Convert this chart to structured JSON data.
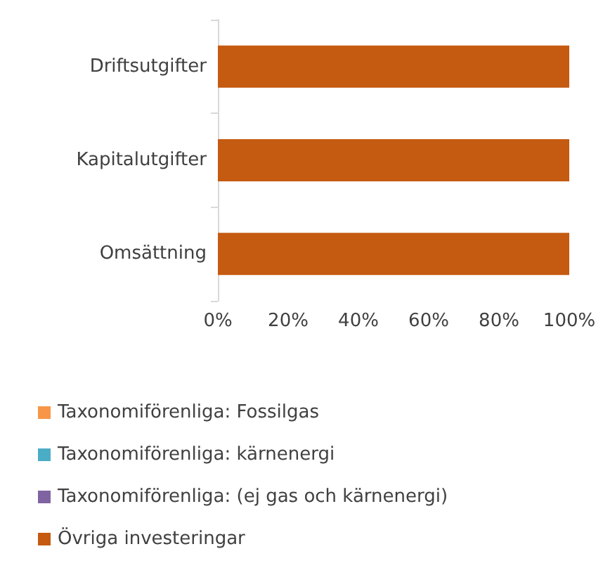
{
  "chart_data": {
    "type": "bar",
    "orientation": "horizontal",
    "stacked": true,
    "categories": [
      "Driftsutgifter",
      "Kapitalutgifter",
      "Omsättning"
    ],
    "series": [
      {
        "name": "Taxonomiförenliga: Fossilgas",
        "color": "#f79646",
        "values": [
          0,
          0,
          0
        ]
      },
      {
        "name": "Taxonomiförenliga: kärnenergi",
        "color": "#4bacc6",
        "values": [
          0,
          0,
          0
        ]
      },
      {
        "name": "Taxonomiförenliga: (ej gas och kärnenergi)",
        "color": "#8064a2",
        "values": [
          0,
          0,
          0
        ]
      },
      {
        "name": "Övriga investeringar",
        "color": "#c55a11",
        "values": [
          100,
          100,
          100
        ]
      }
    ],
    "xlim": [
      0,
      100
    ],
    "xticks": [
      {
        "value": 0,
        "label": "0%"
      },
      {
        "value": 20,
        "label": "20%"
      },
      {
        "value": 40,
        "label": "40%"
      },
      {
        "value": 60,
        "label": "60%"
      },
      {
        "value": 80,
        "label": "80%"
      },
      {
        "value": 100,
        "label": "100%"
      }
    ],
    "grid": false,
    "legend": "bottom"
  }
}
